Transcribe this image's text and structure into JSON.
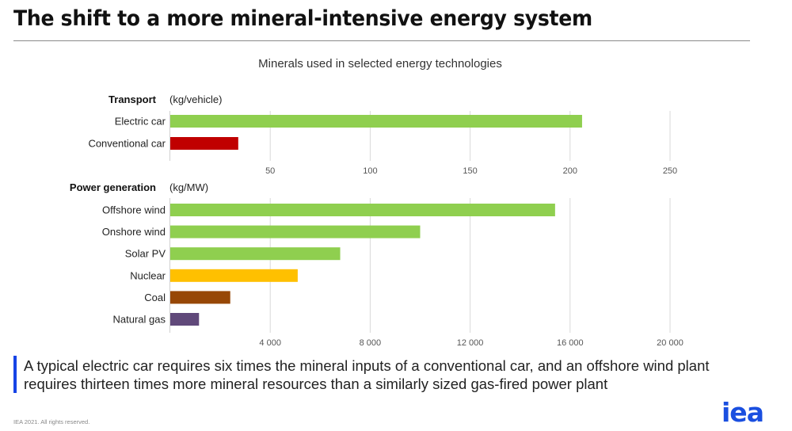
{
  "header": {
    "title": "The shift to a more mineral-intensive energy system",
    "subtitle": "Minerals used in selected energy technologies"
  },
  "chart_data": [
    {
      "type": "bar",
      "orientation": "horizontal",
      "group_title": "Transport",
      "unit": "(kg/vehicle)",
      "categories": [
        "Electric car",
        "Conventional car"
      ],
      "values": [
        206,
        34
      ],
      "colors": [
        "#8fcf4f",
        "#c00000"
      ],
      "xlim": [
        0,
        275
      ],
      "xticks": [
        50,
        100,
        150,
        200,
        250
      ],
      "xtick_labels": [
        "50",
        "100",
        "150",
        "200",
        "250"
      ],
      "grid": true
    },
    {
      "type": "bar",
      "orientation": "horizontal",
      "group_title": "Power generation",
      "unit": "(kg/MW)",
      "categories": [
        "Offshore wind",
        "Onshore wind",
        "Solar PV",
        "Nuclear",
        "Coal",
        "Natural gas"
      ],
      "values": [
        15400,
        10000,
        6800,
        5100,
        2400,
        1150
      ],
      "colors": [
        "#8fcf4f",
        "#8fcf4f",
        "#8fcf4f",
        "#ffc000",
        "#974706",
        "#60497a"
      ],
      "xlim": [
        0,
        22000
      ],
      "xticks": [
        4000,
        8000,
        12000,
        16000,
        20000
      ],
      "xtick_labels": [
        "4 000",
        "8 000",
        "12 000",
        "16 000",
        "20 000"
      ],
      "grid": true
    }
  ],
  "caption": "A typical electric car requires six times the mineral inputs of a conventional car, and an offshore wind plant requires thirteen times more mineral resources than a similarly sized gas-fired power plant",
  "footer": {
    "copyright": "IEA 2021. All rights reserved.",
    "logo_text": "iea"
  },
  "colors": {
    "accent": "#1744e6",
    "logo": "#1a4fe0",
    "grid": "#d9d9d9"
  }
}
